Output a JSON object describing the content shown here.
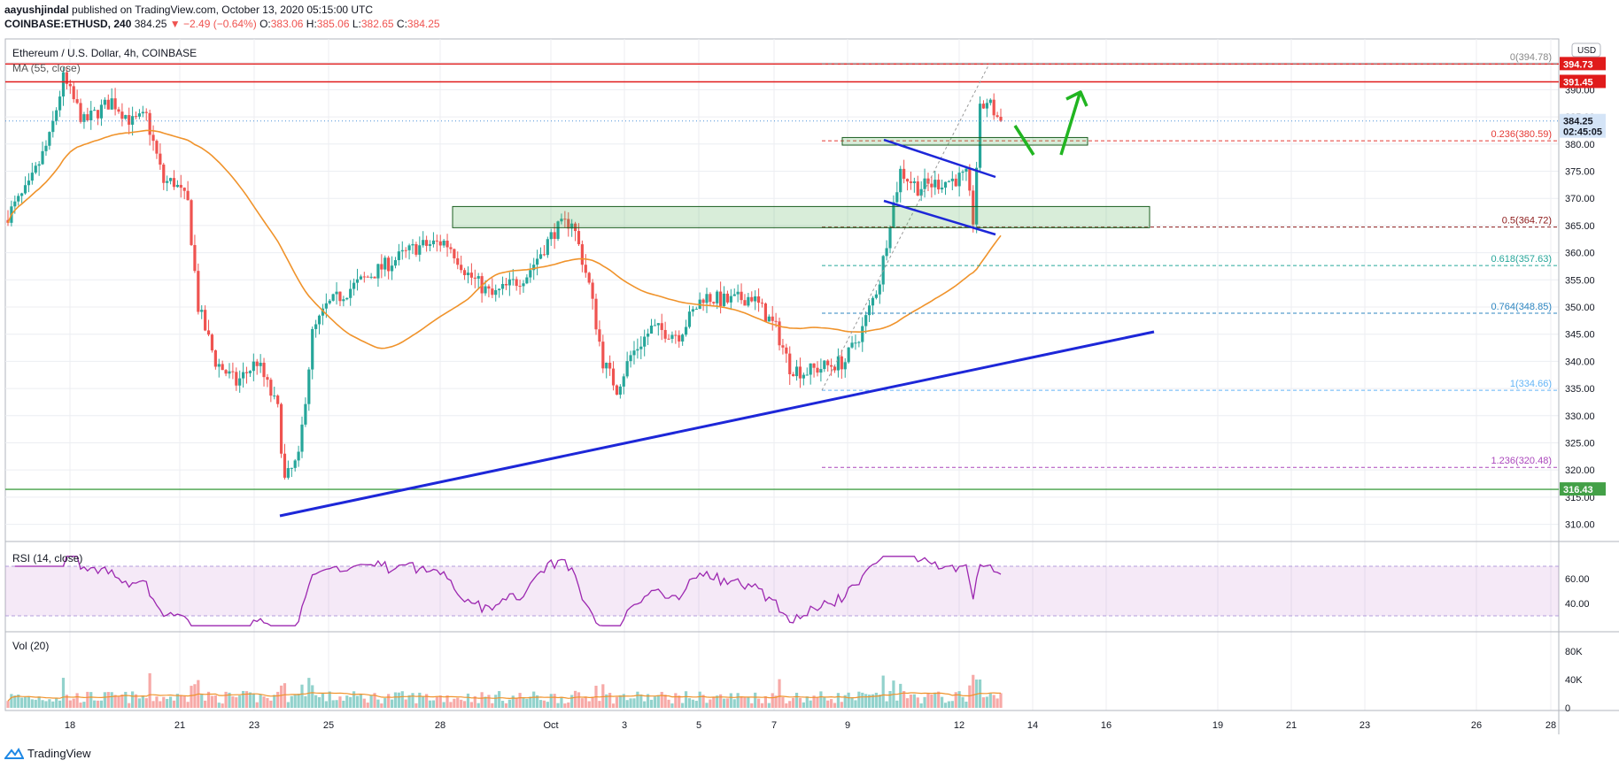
{
  "header": {
    "author": "aayushjindal",
    "published_text": "published on TradingView.com, October 13, 2020 05:15:00 UTC",
    "symbol": "COINBASE:ETHUSD, 240",
    "last": "384.25",
    "change": "−2.49 (−0.64%)",
    "o_label": "O:",
    "o": "383.06",
    "h_label": "H:",
    "h": "385.06",
    "l_label": "L:",
    "l": "382.65",
    "c_label": "C:",
    "c": "384.25"
  },
  "footer": {
    "brand": "TradingView"
  },
  "colors": {
    "up": "#26a69a",
    "down": "#ef5350",
    "ma": "#f0932b",
    "rsi": "#9c27b0",
    "trend": "#1d27d8",
    "resistance": "#e01b1b",
    "support": "#43a047",
    "arrow": "#21b521"
  },
  "chart_data": [
    {
      "type": "candlestick",
      "title": "Ethereum / U.S. Dollar, 4h, COINBASE",
      "currency_badge": "USD",
      "x_ticks": [
        "18",
        "21",
        "23",
        "25",
        "28",
        "Oct",
        "3",
        "5",
        "7",
        "9",
        "12",
        "14",
        "16",
        "19",
        "21",
        "23",
        "26",
        "28"
      ],
      "y_ticks": [
        "310.00",
        "315.00",
        "320.00",
        "325.00",
        "330.00",
        "335.00",
        "340.00",
        "345.00",
        "350.00",
        "355.00",
        "360.00",
        "365.00",
        "370.00",
        "375.00",
        "380.00",
        "385.00",
        "390.00",
        "395.00"
      ],
      "ylim": [
        307,
        400
      ],
      "ma": {
        "label": "MA (55, close)"
      },
      "price_labels": [
        {
          "value": 394.73,
          "text": "394.73",
          "color": "#e01b1b"
        },
        {
          "value": 391.45,
          "text": "391.45",
          "color": "#e01b1b"
        },
        {
          "value": 384.25,
          "text": "384.25",
          "color": "#d4e4f7"
        },
        {
          "value": 382.3,
          "text": "02:45:05",
          "color": "#d4e4f7"
        },
        {
          "value": 316.43,
          "text": "316.43",
          "color": "#43a047"
        }
      ],
      "fib_levels": [
        {
          "level": "0",
          "value": 394.78,
          "text": "0(394.78)",
          "color": "#888888"
        },
        {
          "level": "0.236",
          "value": 380.59,
          "text": "0.236(380.59)",
          "color": "#e53935"
        },
        {
          "level": "0.5",
          "value": 364.72,
          "text": "0.5(364.72)",
          "color": "#8d1b1b"
        },
        {
          "level": "0.618",
          "value": 357.63,
          "text": "0.618(357.63)",
          "color": "#26a69a"
        },
        {
          "level": "0.764",
          "value": 348.85,
          "text": "0.764(348.85)",
          "color": "#2e86c1"
        },
        {
          "level": "1",
          "value": 334.66,
          "text": "1(334.66)",
          "color": "#64b5f6"
        },
        {
          "level": "1.236",
          "value": 320.48,
          "text": "1.236(320.48)",
          "color": "#ab47bc"
        }
      ],
      "horizontal_lines": [
        {
          "value": 394.73,
          "color": "#e01b1b"
        },
        {
          "value": 391.45,
          "color": "#e01b1b"
        },
        {
          "value": 316.43,
          "color": "#43a047"
        }
      ]
    },
    {
      "type": "line",
      "title": "RSI (14, close)",
      "y_ticks": [
        "40.00",
        "60.00"
      ],
      "ylim": [
        20,
        80
      ],
      "band": [
        30,
        70
      ]
    },
    {
      "type": "bar",
      "title": "Vol (20)",
      "y_ticks": [
        "0",
        "40K",
        "80K"
      ],
      "ylim": [
        0,
        100000
      ]
    }
  ]
}
